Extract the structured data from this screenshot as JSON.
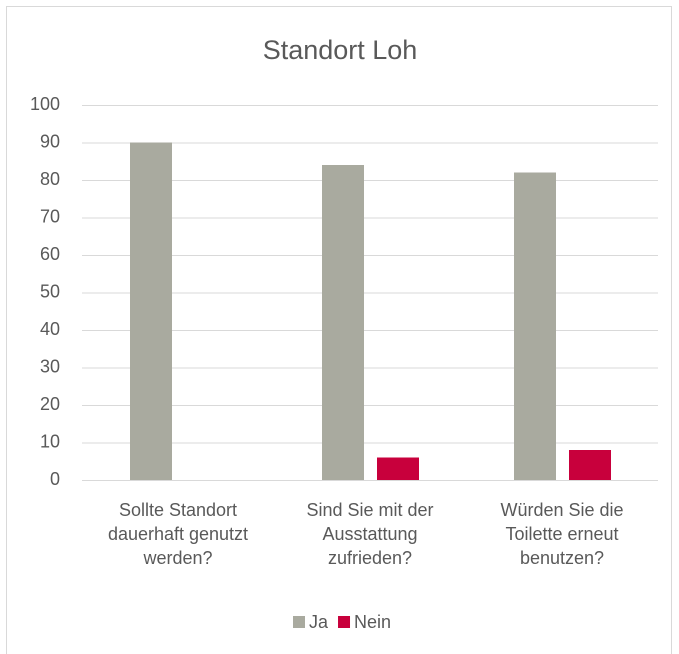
{
  "chart_data": {
    "type": "bar",
    "title": "Standort Loh",
    "categories": [
      "Sollte Standort dauerhaft genutzt werden?",
      "Sind Sie mit der Ausstattung zufrieden?",
      "Würden Sie die Toilette erneut benutzen?"
    ],
    "series": [
      {
        "name": "Ja",
        "color": "#a9aa9f",
        "values": [
          90,
          84,
          82
        ]
      },
      {
        "name": "Nein",
        "color": "#c8003c",
        "values": [
          0,
          6,
          8
        ]
      }
    ],
    "ylim": [
      0,
      100
    ],
    "yticks": [
      0,
      10,
      20,
      30,
      40,
      50,
      60,
      70,
      80,
      90,
      100
    ],
    "grid": true,
    "legend": "bottom"
  }
}
